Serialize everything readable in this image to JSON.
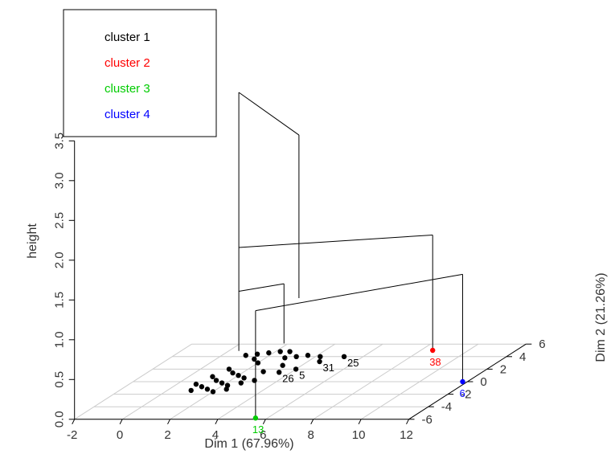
{
  "chart_data": {
    "type": "scatter",
    "subtype": "3d-hierarchical-clustering-on-factor-map",
    "xlabel": "Dim 1 (67.96%)",
    "ylabel": "Dim 2 (21.26%)",
    "zlabel": "height",
    "x_ticks": [
      "-2",
      "0",
      "2",
      "4",
      "6",
      "8",
      "10",
      "12"
    ],
    "y_ticks": [
      "-6",
      "-4",
      "-2",
      "0",
      "2",
      "4",
      "6"
    ],
    "z_ticks": [
      "0.0",
      "0.5",
      "1.0",
      "1.5",
      "2.0",
      "2.5",
      "3.0",
      "3.5"
    ],
    "xlim": [
      -2,
      12
    ],
    "ylim": [
      -6,
      6
    ],
    "zlim": [
      0,
      3.5
    ],
    "grid": true,
    "legend_position": "top-left",
    "legend": [
      {
        "label": "cluster 1",
        "color": "#000000"
      },
      {
        "label": "cluster 2",
        "color": "#ff0000"
      },
      {
        "label": "cluster 3",
        "color": "#00cc00"
      },
      {
        "label": "cluster 4",
        "color": "#0000ff"
      }
    ],
    "points": [
      {
        "x": 8.5,
        "y": 5.0,
        "label": "38",
        "cluster": 2
      },
      {
        "x": 5.5,
        "y": -5.8,
        "label": "13",
        "cluster": 3
      },
      {
        "x": 11.8,
        "y": 0.0,
        "label": "6",
        "cluster": 4
      },
      {
        "x": 5.2,
        "y": 4.0,
        "label": "25",
        "cluster": 1
      },
      {
        "x": 4.5,
        "y": 3.2,
        "label": "31",
        "cluster": 1
      },
      {
        "x": 4.0,
        "y": 2.0,
        "label": "5",
        "cluster": 1
      },
      {
        "x": 3.5,
        "y": 1.5,
        "label": "26",
        "cluster": 1
      },
      {
        "x": 4.2,
        "y": 4.0,
        "label": "",
        "cluster": 1
      },
      {
        "x": 3.6,
        "y": 4.2,
        "label": "",
        "cluster": 1
      },
      {
        "x": 3.2,
        "y": 4.0,
        "label": "",
        "cluster": 1
      },
      {
        "x": 2.8,
        "y": 3.8,
        "label": "",
        "cluster": 1
      },
      {
        "x": 2.6,
        "y": 4.8,
        "label": "",
        "cluster": 1
      },
      {
        "x": 2.2,
        "y": 4.8,
        "label": "",
        "cluster": 1
      },
      {
        "x": 1.8,
        "y": 4.6,
        "label": "",
        "cluster": 1
      },
      {
        "x": 1.4,
        "y": 4.4,
        "label": "",
        "cluster": 1
      },
      {
        "x": 1.0,
        "y": 4.2,
        "label": "",
        "cluster": 1
      },
      {
        "x": 1.6,
        "y": 3.6,
        "label": "",
        "cluster": 1
      },
      {
        "x": 2.0,
        "y": 3.0,
        "label": "",
        "cluster": 1
      },
      {
        "x": 1.2,
        "y": 2.0,
        "label": "",
        "cluster": 1
      },
      {
        "x": 1.6,
        "y": 1.4,
        "label": "",
        "cluster": 1
      },
      {
        "x": 2.0,
        "y": 1.0,
        "label": "",
        "cluster": 1
      },
      {
        "x": 2.4,
        "y": 0.6,
        "label": "",
        "cluster": 1
      },
      {
        "x": 1.0,
        "y": 0.8,
        "label": "",
        "cluster": 1
      },
      {
        "x": 1.4,
        "y": 0.2,
        "label": "",
        "cluster": 1
      },
      {
        "x": 1.8,
        "y": -0.2,
        "label": "",
        "cluster": 1
      },
      {
        "x": 2.2,
        "y": -0.6,
        "label": "",
        "cluster": 1
      },
      {
        "x": 0.8,
        "y": -0.4,
        "label": "",
        "cluster": 1
      },
      {
        "x": 1.2,
        "y": -0.8,
        "label": "",
        "cluster": 1
      },
      {
        "x": 1.6,
        "y": -1.2,
        "label": "",
        "cluster": 1
      },
      {
        "x": 2.6,
        "y": -0.2,
        "label": "",
        "cluster": 1
      },
      {
        "x": 3.0,
        "y": 0.2,
        "label": "",
        "cluster": 1
      },
      {
        "x": 2.8,
        "y": 1.6,
        "label": "",
        "cluster": 1
      },
      {
        "x": 3.2,
        "y": 2.6,
        "label": "",
        "cluster": 1
      },
      {
        "x": 1.0,
        "y": -1.4,
        "label": "",
        "cluster": 1
      },
      {
        "x": 2.0,
        "y": -1.6,
        "label": "",
        "cluster": 1
      },
      {
        "x": 2.4,
        "y": -1.2,
        "label": "",
        "cluster": 1
      }
    ],
    "dendrogram": {
      "merges": [
        {
          "children": [
            "cluster 1 (left group)",
            "cluster 1 (right group)"
          ],
          "height": 0.9
        },
        {
          "children": [
            "cluster 1",
            "cluster 2"
          ],
          "height": 1.45
        },
        {
          "children": [
            "cluster 3",
            "cluster 4"
          ],
          "height": 1.35
        },
        {
          "children": [
            "clusters 1+2",
            "clusters 3+4"
          ],
          "height": 3.4
        }
      ]
    }
  }
}
